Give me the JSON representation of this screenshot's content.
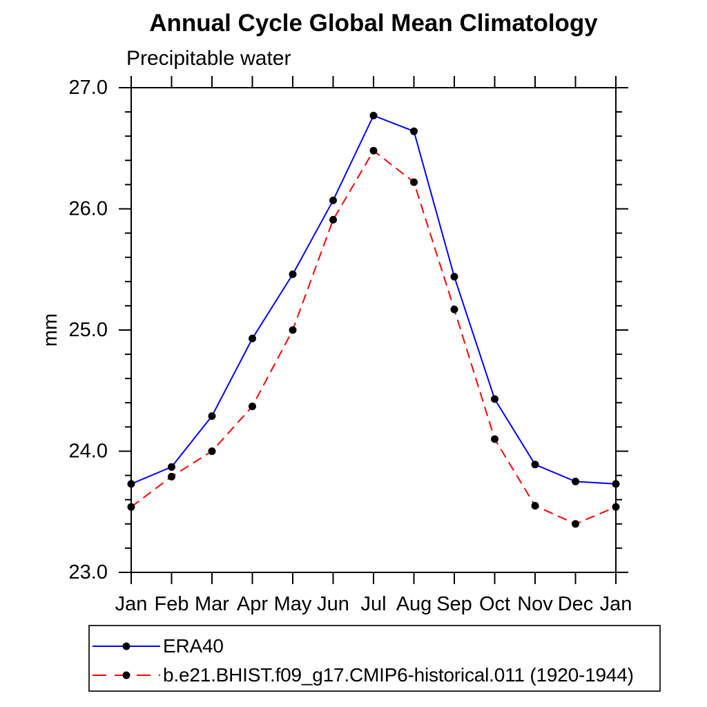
{
  "chart_data": {
    "type": "line",
    "title": "Annual Cycle Global Mean Climatology",
    "subtitle": "Precipitable water",
    "ylabel": "mm",
    "xlabel": "",
    "categories": [
      "Jan",
      "Feb",
      "Mar",
      "Apr",
      "May",
      "Jun",
      "Jul",
      "Aug",
      "Sep",
      "Oct",
      "Nov",
      "Dec",
      "Jan"
    ],
    "ylim": [
      23.0,
      27.0
    ],
    "ytick_major_values": [
      23.0,
      24.0,
      25.0,
      26.0,
      27.0
    ],
    "ytick_labels": [
      "23.0",
      "24.0",
      "25.0",
      "26.0",
      "27.0"
    ],
    "ytick_minor_step": 0.2,
    "grid": false,
    "legend_position": "bottom-left-box",
    "frame_color": "#000000",
    "marker": "filled-circle",
    "marker_color": "#000000",
    "series": [
      {
        "name": "ERA40",
        "color": "#0000ff",
        "style": "solid",
        "values": [
          23.73,
          23.87,
          24.29,
          24.93,
          25.46,
          26.07,
          26.77,
          26.64,
          25.44,
          24.43,
          23.89,
          23.75,
          23.73
        ]
      },
      {
        "name": "b.e21.BHIST.f09_g17.CMIP6-historical.011 (1920-1944)",
        "color": "#ff0000",
        "style": "dashed",
        "values": [
          23.54,
          23.79,
          24.0,
          24.37,
          25.0,
          25.91,
          26.48,
          26.22,
          25.17,
          24.1,
          23.55,
          23.4,
          23.54
        ]
      }
    ]
  }
}
